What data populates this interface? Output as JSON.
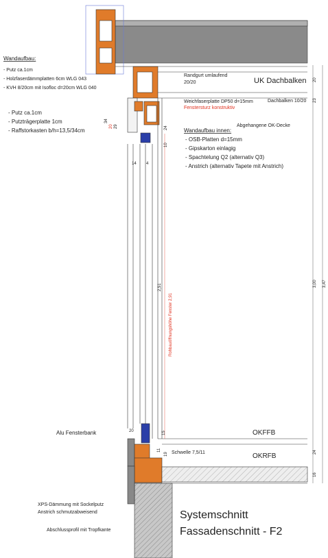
{
  "title": [
    "Systemschnitt",
    "Fassadenschnitt - F2"
  ],
  "outer_wall": {
    "heading": "Wandaufbau:",
    "items": [
      "- Putz ca.1cm",
      "- Holzfaserdämmplatten 6cm WLG 043",
      "- KVH 8/20cm mit Isofloc d=20cm WLG 040"
    ]
  },
  "box_wall": {
    "items": [
      "- Putz ca.1cm",
      "- Putzträgerplatte 1cm",
      "- Raffstorkasten b/h=13,5/34cm"
    ]
  },
  "inner_wall": {
    "heading": "Wandaufbau innen:",
    "items": [
      "- OSB-Platten d=15mm",
      "- Gipskarton einlagig",
      "- Spachtelung Q2 (alternativ Q3)",
      "- Anstrich (alternativ Tapete mit Anstrich)"
    ]
  },
  "labels": {
    "randgurt": "Randgurt umlaufend",
    "randgurt_size": "20/20",
    "uk_dachbalken": "UK Dachbalken",
    "dachbalken": "Dachbalken 10/20",
    "weichfaser": "Weichfaserplatte DP50 d=15mm",
    "fenstersturz": "Fenstersturz konstruktiv",
    "ok_decke": "Abgehangene OK-Decke",
    "rohbau": "Rohbauöffnungshöhe Fenster  2,91",
    "fensterbank": "Alu Fensterbank",
    "okffb": "OKFFB",
    "schwelle": "Schwelle 7,5/11",
    "okrfb": "OKRFB",
    "xps": "XPS-Dämmung mit Sockelputz",
    "anstrich": "Anstrich schmutzabweisend",
    "abschluss": "Abschlussprofil mit Tropfkante"
  },
  "dimensions": {
    "total_inner": "3,00",
    "total_outer": "3,47",
    "window": "2,51",
    "top_20": "20",
    "top_23": "23",
    "box_24": "24",
    "box_10": "10",
    "bottom_15": "15",
    "bottom_24": "24",
    "bottom_16": "16",
    "sill_20": "20",
    "w_14": "14",
    "w_4": "4",
    "h_34": "34",
    "h_29": "29",
    "h_20": "20",
    "s_19": "19",
    "s_11": "11"
  }
}
